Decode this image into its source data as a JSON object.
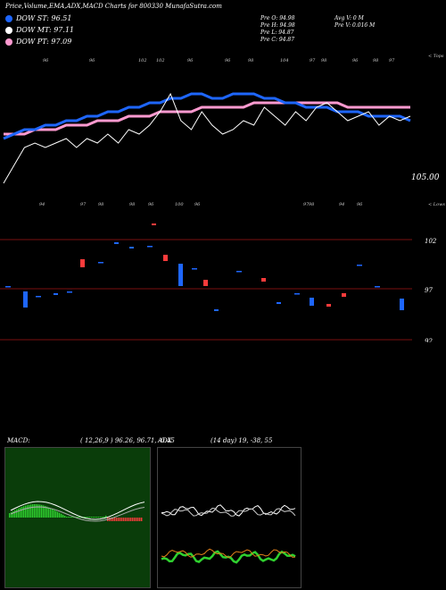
{
  "header": {
    "title": "Price,Volume,EMA,ADX,MACD Charts for 800330 MunafaSutra.com"
  },
  "legend": [
    {
      "label": "DOW ST: 96.51",
      "color": "#1e66ff"
    },
    {
      "label": "DOW MT: 97.11",
      "color": "#ffffff"
    },
    {
      "label": "DOW PT: 97.09",
      "color": "#ff9ad0"
    }
  ],
  "info": {
    "pre_o": "Pre   O: 94.98",
    "pre_h": "Pre   H: 94.98",
    "pre_l": "Pre   L: 94.87",
    "pre_c": "Pre   C: 94.87",
    "avg_v": "Avg V: 0   M",
    "pre_v": "Pre   V: 0.016  M"
  },
  "price_panel": {
    "upper_label": "< Tops",
    "lower_label": "< Lows",
    "last_price": "105.00",
    "top_ticks": [
      "96",
      "96",
      "102",
      "102",
      "96",
      "96",
      "98",
      "104",
      "97",
      "98",
      "96",
      "98",
      "97"
    ],
    "bottom_ticks": [
      "94",
      "97",
      "98",
      "98",
      "96",
      "100",
      "96",
      "97",
      "98",
      "94",
      "96"
    ]
  },
  "volume_panel": {
    "axis_labels": [
      "102",
      "97",
      "92"
    ]
  },
  "macd_panel": {
    "label": "MACD:",
    "values": "( 12,26,9 ) 96.26,  96.71,  -0.45"
  },
  "adx_panel": {
    "label": "ADX",
    "values": "(14  day) 19,  -38,  55"
  },
  "chart_data": {
    "type": "line",
    "series": [
      {
        "values": [
          102,
          106,
          110,
          111,
          110,
          111,
          112,
          110,
          112,
          111,
          113,
          111,
          114,
          113,
          115,
          118,
          122,
          116,
          114,
          118,
          115,
          113,
          114,
          116,
          115,
          119,
          117,
          115,
          118,
          116,
          119,
          120,
          118,
          116,
          117,
          118,
          115,
          117,
          116,
          117
        ]
      },
      {
        "values": [
          112,
          113,
          114,
          114,
          115,
          115,
          116,
          116,
          117,
          117,
          118,
          118,
          119,
          119,
          120,
          120,
          121,
          121,
          122,
          122,
          121,
          121,
          122,
          122,
          122,
          121,
          121,
          120,
          120,
          119,
          119,
          119,
          118,
          118,
          118,
          117,
          117,
          117,
          117,
          116
        ]
      },
      {
        "values": [
          113,
          113,
          113,
          114,
          114,
          114,
          115,
          115,
          115,
          116,
          116,
          116,
          117,
          117,
          117,
          118,
          118,
          118,
          118,
          119,
          119,
          119,
          119,
          119,
          120,
          120,
          120,
          120,
          120,
          120,
          120,
          120,
          120,
          119,
          119,
          119,
          119,
          119,
          119,
          119
        ]
      }
    ]
  }
}
